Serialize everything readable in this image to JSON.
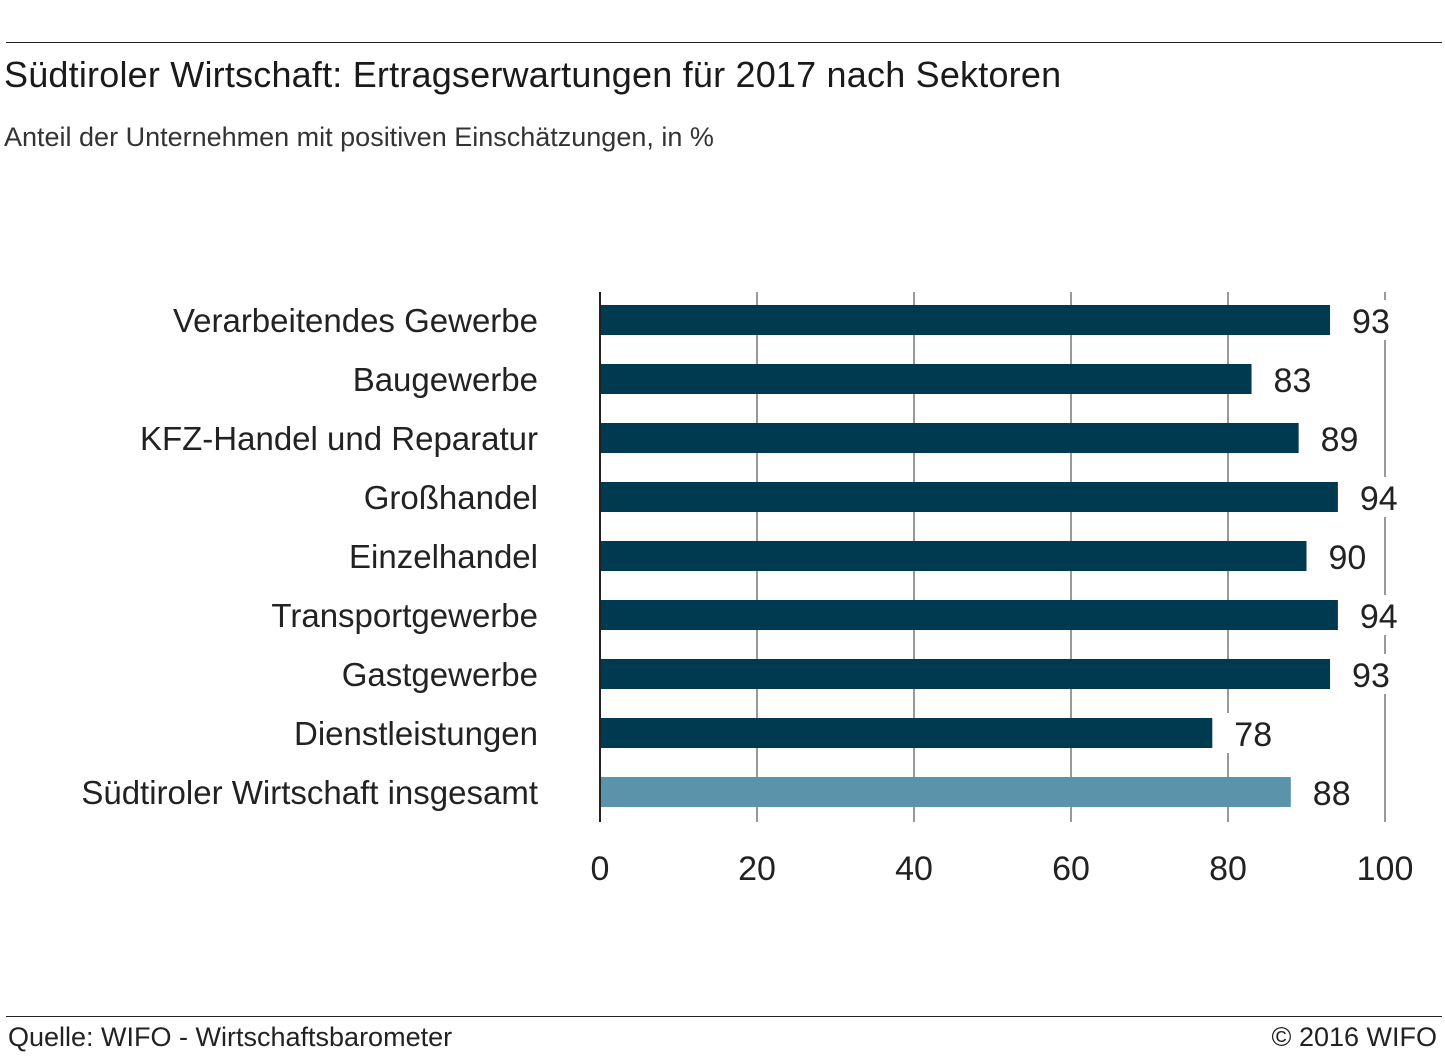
{
  "header": {
    "title": "Südtiroler Wirtschaft: Ertragserwartungen für 2017 nach Sektoren",
    "subtitle": "Anteil der Unternehmen mit positiven Einschätzungen, in %"
  },
  "footer": {
    "source": "Quelle: WIFO - Wirtschaftsbarometer",
    "copyright": "© 2016 WIFO"
  },
  "chart_data": {
    "type": "bar",
    "orientation": "horizontal",
    "categories": [
      "Verarbeitendes Gewerbe",
      "Baugewerbe",
      "KFZ-Handel und Reparatur",
      "Großhandel",
      "Einzelhandel",
      "Transportgewerbe",
      "Gastgewerbe",
      "Dienstleistungen",
      "Südtiroler Wirtschaft insgesamt"
    ],
    "values": [
      93,
      83,
      89,
      94,
      90,
      94,
      93,
      78,
      88
    ],
    "value_labels": [
      "93",
      "83",
      "89",
      "94",
      "90",
      "94",
      "93",
      "78",
      "88"
    ],
    "xlim": [
      0,
      100
    ],
    "x_ticks": [
      0,
      20,
      40,
      60,
      80,
      100
    ],
    "x_tick_labels": [
      "0",
      "20",
      "40",
      "60",
      "80",
      "100"
    ],
    "grid": true,
    "colors": {
      "sector_bar": "#003a50",
      "total_bar": "#5a93ab",
      "grid": "#333333"
    }
  }
}
